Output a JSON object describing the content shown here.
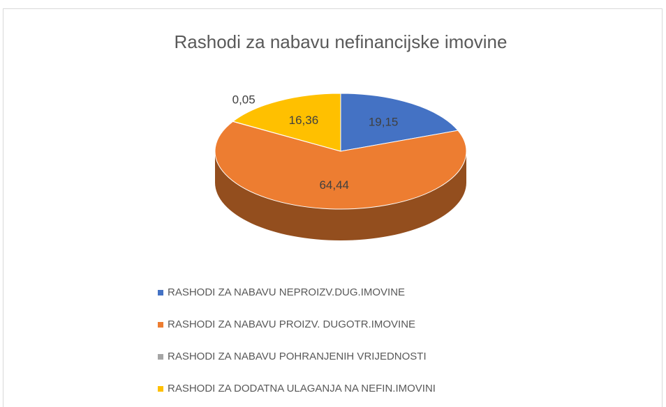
{
  "chart_data": {
    "type": "pie3d",
    "title": "Rashodi za nabavu nefinancijske imovine",
    "categories": [
      "RASHODI ZA NABAVU NEPROIZV.DUG.IMOVINE",
      "RASHODI ZA NABAVU PROIZV. DUGOTR.IMOVINE",
      "RASHODI ZA NABAVU POHRANJENIH VRIJEDNOSTI",
      "RASHODI ZA DODATNA ULAGANJA NA NEFIN.IMOVINI"
    ],
    "values": [
      19.15,
      64.44,
      0.05,
      16.36
    ],
    "value_labels": [
      "19,15",
      "64,44",
      "0,05",
      "16,36"
    ],
    "colors": [
      "#4472c4",
      "#ed7d31",
      "#a5a5a5",
      "#ffc000"
    ],
    "legend": "bottom"
  }
}
